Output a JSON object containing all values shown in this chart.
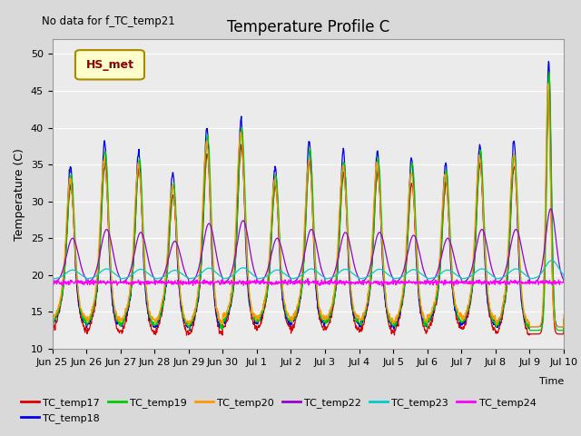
{
  "title": "Temperature Profile C",
  "xlabel": "Time",
  "ylabel": "Temperature (C)",
  "annotation": "No data for f_TC_temp21",
  "legend_label": "HS_met",
  "ylim": [
    10,
    52
  ],
  "yticks": [
    10,
    15,
    20,
    25,
    30,
    35,
    40,
    45,
    50
  ],
  "background_color": "#d9d9d9",
  "plot_bg_color": "#ebebeb",
  "series": [
    {
      "name": "TC_temp17",
      "color": "#dd0000"
    },
    {
      "name": "TC_temp18",
      "color": "#0000ee"
    },
    {
      "name": "TC_temp19",
      "color": "#00cc00"
    },
    {
      "name": "TC_temp20",
      "color": "#ff9900"
    },
    {
      "name": "TC_temp22",
      "color": "#9900cc"
    },
    {
      "name": "TC_temp23",
      "color": "#00cccc"
    },
    {
      "name": "TC_temp24",
      "color": "#ff00ff"
    }
  ],
  "x_tick_labels": [
    "Jun 25",
    "Jun 26",
    "Jun 27",
    "Jun 28",
    "Jun 29",
    "Jun 30",
    "Jul 1",
    "Jul 2",
    "Jul 3",
    "Jul 4",
    "Jul 5",
    "Jul 6",
    "Jul 7",
    "Jul 8",
    "Jul 9",
    "Jul 10"
  ],
  "day_peak_heights": [
    35,
    38,
    37,
    34,
    40,
    41,
    35,
    38,
    37,
    37,
    36,
    35,
    38,
    38,
    49,
    20
  ],
  "num_days": 16,
  "points_per_day": 96
}
